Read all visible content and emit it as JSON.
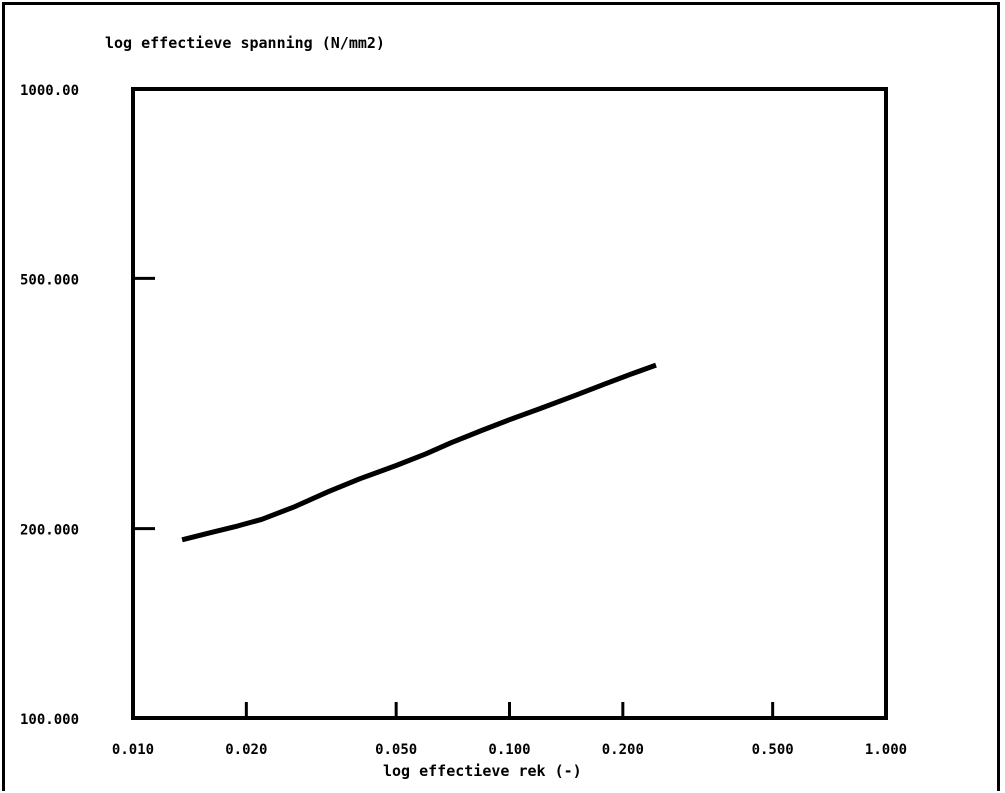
{
  "chart_data": {
    "type": "line",
    "xlabel": "log effectieve rek  (-)",
    "ylabel": "log effectieve spanning  (N/mm2)",
    "x_scale": "log",
    "y_scale": "log",
    "xlim": [
      0.01,
      1.0
    ],
    "ylim": [
      100.0,
      1000.0
    ],
    "x_ticks": [
      {
        "value": 0.01,
        "label": "0.010"
      },
      {
        "value": 0.02,
        "label": "0.020"
      },
      {
        "value": 0.05,
        "label": "0.050"
      },
      {
        "value": 0.1,
        "label": "0.100"
      },
      {
        "value": 0.2,
        "label": "0.200"
      },
      {
        "value": 0.5,
        "label": "0.500"
      },
      {
        "value": 1.0,
        "label": "1.000"
      }
    ],
    "y_ticks": [
      {
        "value": 100,
        "label": "100.000"
      },
      {
        "value": 200,
        "label": "200.000"
      },
      {
        "value": 500,
        "label": "500.000"
      },
      {
        "value": 1000,
        "label": "1000.00"
      }
    ],
    "grid": false,
    "series": [
      {
        "color": "#000000",
        "x": [
          0.0135,
          0.016,
          0.019,
          0.022,
          0.027,
          0.033,
          0.04,
          0.05,
          0.06,
          0.07,
          0.085,
          0.1,
          0.12,
          0.15,
          0.18,
          0.21,
          0.245
        ],
        "y": [
          192,
          197,
          202,
          207,
          217,
          229,
          240,
          252,
          263,
          274,
          287,
          298,
          310,
          326,
          340,
          352,
          364
        ]
      }
    ]
  }
}
